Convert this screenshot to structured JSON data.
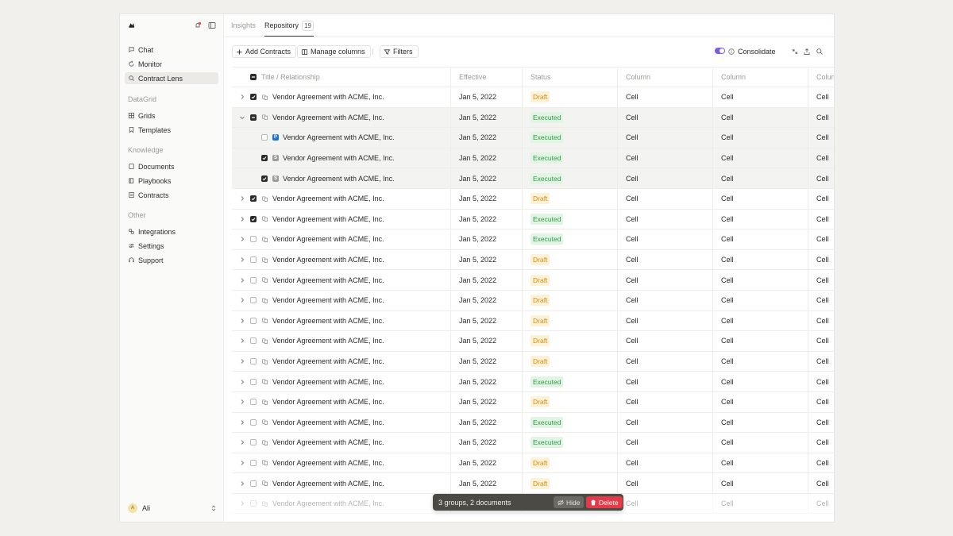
{
  "nav": {
    "main": [
      {
        "label": "Chat",
        "icon": "chat-icon"
      },
      {
        "label": "Monitor",
        "icon": "monitor-icon"
      },
      {
        "label": "Contract Lens",
        "icon": "contract-lens-icon",
        "active": true
      }
    ],
    "datagrid_heading": "DataGrid",
    "datagrid": [
      {
        "label": "Grids",
        "icon": "grid-icon"
      },
      {
        "label": "Templates",
        "icon": "bookmark-icon"
      }
    ],
    "knowledge_heading": "Knowledge",
    "knowledge": [
      {
        "label": "Documents",
        "icon": "documents-icon"
      },
      {
        "label": "Playbooks",
        "icon": "book-icon"
      },
      {
        "label": "Contracts",
        "icon": "contracts-icon"
      }
    ],
    "other_heading": "Other",
    "other": [
      {
        "label": "Integrations",
        "icon": "link-icon"
      },
      {
        "label": "Settings",
        "icon": "sliders-icon"
      },
      {
        "label": "Support",
        "icon": "headset-icon"
      }
    ]
  },
  "user": {
    "name": "Ali",
    "initial": "A"
  },
  "tabs": [
    {
      "label": "Insights"
    },
    {
      "label": "Repository",
      "count": "19",
      "active": true
    }
  ],
  "toolbar": {
    "add_label": "Add Contracts",
    "manage_label": "Manage columns",
    "filters_label": "Filters",
    "consolidate_label": "Consolidate",
    "consolidate_on": true
  },
  "table": {
    "headers": [
      "Title / Relationship",
      "Effective",
      "Status",
      "Column",
      "Column",
      "Colum"
    ],
    "rows": [
      {
        "kind": "group",
        "expanded": false,
        "check": "on",
        "title": "Vendor Agreement with ACME, Inc.",
        "effective": "Jan 5, 2022",
        "status": "Draft",
        "c1": "Cell",
        "c2": "Cell",
        "c3": "Cell"
      },
      {
        "kind": "group",
        "expanded": true,
        "check": "mixed",
        "title": "Vendor Agreement with ACME, Inc.",
        "effective": "Jan 5, 2022",
        "status": "Executed",
        "c1": "Cell",
        "c2": "Cell",
        "c3": "Cell"
      },
      {
        "kind": "child",
        "file": "P",
        "check": "off",
        "title": "Vendor Agreement with ACME, Inc.",
        "effective": "Jan 5, 2022",
        "status": "Executed",
        "c1": "Cell",
        "c2": "Cell",
        "c3": "Cell"
      },
      {
        "kind": "child",
        "file": "S",
        "check": "on",
        "title": "Vendor Agreement with ACME, Inc.",
        "effective": "Jan 5, 2022",
        "status": "Executed",
        "c1": "Cell",
        "c2": "Cell",
        "c3": "Cell"
      },
      {
        "kind": "child",
        "file": "S",
        "check": "on",
        "title": "Vendor Agreement with ACME, Inc.",
        "effective": "Jan 5, 2022",
        "status": "Executed",
        "c1": "Cell",
        "c2": "Cell",
        "c3": "Cell"
      },
      {
        "kind": "group",
        "expanded": false,
        "check": "on",
        "title": "Vendor Agreement with ACME, Inc.",
        "effective": "Jan 5, 2022",
        "status": "Draft",
        "c1": "Cell",
        "c2": "Cell",
        "c3": "Cell"
      },
      {
        "kind": "group",
        "expanded": false,
        "check": "on",
        "title": "Vendor Agreement with ACME, Inc.",
        "effective": "Jan 5, 2022",
        "status": "Executed",
        "c1": "Cell",
        "c2": "Cell",
        "c3": "Cell"
      },
      {
        "kind": "group",
        "expanded": false,
        "check": "off",
        "title": "Vendor Agreement with ACME, Inc.",
        "effective": "Jan 5, 2022",
        "status": "Executed",
        "c1": "Cell",
        "c2": "Cell",
        "c3": "Cell"
      },
      {
        "kind": "group",
        "expanded": false,
        "check": "off",
        "title": "Vendor Agreement with ACME, Inc.",
        "effective": "Jan 5, 2022",
        "status": "Draft",
        "c1": "Cell",
        "c2": "Cell",
        "c3": "Cell"
      },
      {
        "kind": "group",
        "expanded": false,
        "check": "off",
        "title": "Vendor Agreement with ACME, Inc.",
        "effective": "Jan 5, 2022",
        "status": "Draft",
        "c1": "Cell",
        "c2": "Cell",
        "c3": "Cell"
      },
      {
        "kind": "group",
        "expanded": false,
        "check": "off",
        "title": "Vendor Agreement with ACME, Inc.",
        "effective": "Jan 5, 2022",
        "status": "Draft",
        "c1": "Cell",
        "c2": "Cell",
        "c3": "Cell"
      },
      {
        "kind": "group",
        "expanded": false,
        "check": "off",
        "title": "Vendor Agreement with ACME, Inc.",
        "effective": "Jan 5, 2022",
        "status": "Draft",
        "c1": "Cell",
        "c2": "Cell",
        "c3": "Cell"
      },
      {
        "kind": "group",
        "expanded": false,
        "check": "off",
        "title": "Vendor Agreement with ACME, Inc.",
        "effective": "Jan 5, 2022",
        "status": "Draft",
        "c1": "Cell",
        "c2": "Cell",
        "c3": "Cell"
      },
      {
        "kind": "group",
        "expanded": false,
        "check": "off",
        "title": "Vendor Agreement with ACME, Inc.",
        "effective": "Jan 5, 2022",
        "status": "Draft",
        "c1": "Cell",
        "c2": "Cell",
        "c3": "Cell"
      },
      {
        "kind": "group",
        "expanded": false,
        "check": "off",
        "title": "Vendor Agreement with ACME, Inc.",
        "effective": "Jan 5, 2022",
        "status": "Executed",
        "c1": "Cell",
        "c2": "Cell",
        "c3": "Cell"
      },
      {
        "kind": "group",
        "expanded": false,
        "check": "off",
        "title": "Vendor Agreement with ACME, Inc.",
        "effective": "Jan 5, 2022",
        "status": "Draft",
        "c1": "Cell",
        "c2": "Cell",
        "c3": "Cell"
      },
      {
        "kind": "group",
        "expanded": false,
        "check": "off",
        "title": "Vendor Agreement with ACME, Inc.",
        "effective": "Jan 5, 2022",
        "status": "Executed",
        "c1": "Cell",
        "c2": "Cell",
        "c3": "Cell"
      },
      {
        "kind": "group",
        "expanded": false,
        "check": "off",
        "title": "Vendor Agreement with ACME, Inc.",
        "effective": "Jan 5, 2022",
        "status": "Executed",
        "c1": "Cell",
        "c2": "Cell",
        "c3": "Cell"
      },
      {
        "kind": "group",
        "expanded": false,
        "check": "off",
        "title": "Vendor Agreement with ACME, Inc.",
        "effective": "Jan 5, 2022",
        "status": "Draft",
        "c1": "Cell",
        "c2": "Cell",
        "c3": "Cell"
      },
      {
        "kind": "group",
        "expanded": false,
        "check": "off",
        "title": "Vendor Agreement with ACME, Inc.",
        "effective": "Jan 5, 2022",
        "status": "Draft",
        "c1": "Cell",
        "c2": "Cell",
        "c3": "Cell"
      },
      {
        "kind": "group",
        "expanded": false,
        "check": "off",
        "faded": true,
        "title": "Vendor Agreement with ACME, Inc.",
        "effective": "Jan 5, 2022",
        "status": "",
        "c1": "Cell",
        "c2": "Cell",
        "c3": "Cell"
      }
    ]
  },
  "selection": {
    "summary": "3 groups, 2 documents",
    "hide_label": "Hide",
    "delete_label": "Delete"
  },
  "colors": {
    "accent": "#7c5ce0",
    "delete": "#e23b4a",
    "draft": "#d68e0a",
    "executed": "#2d9c44"
  }
}
